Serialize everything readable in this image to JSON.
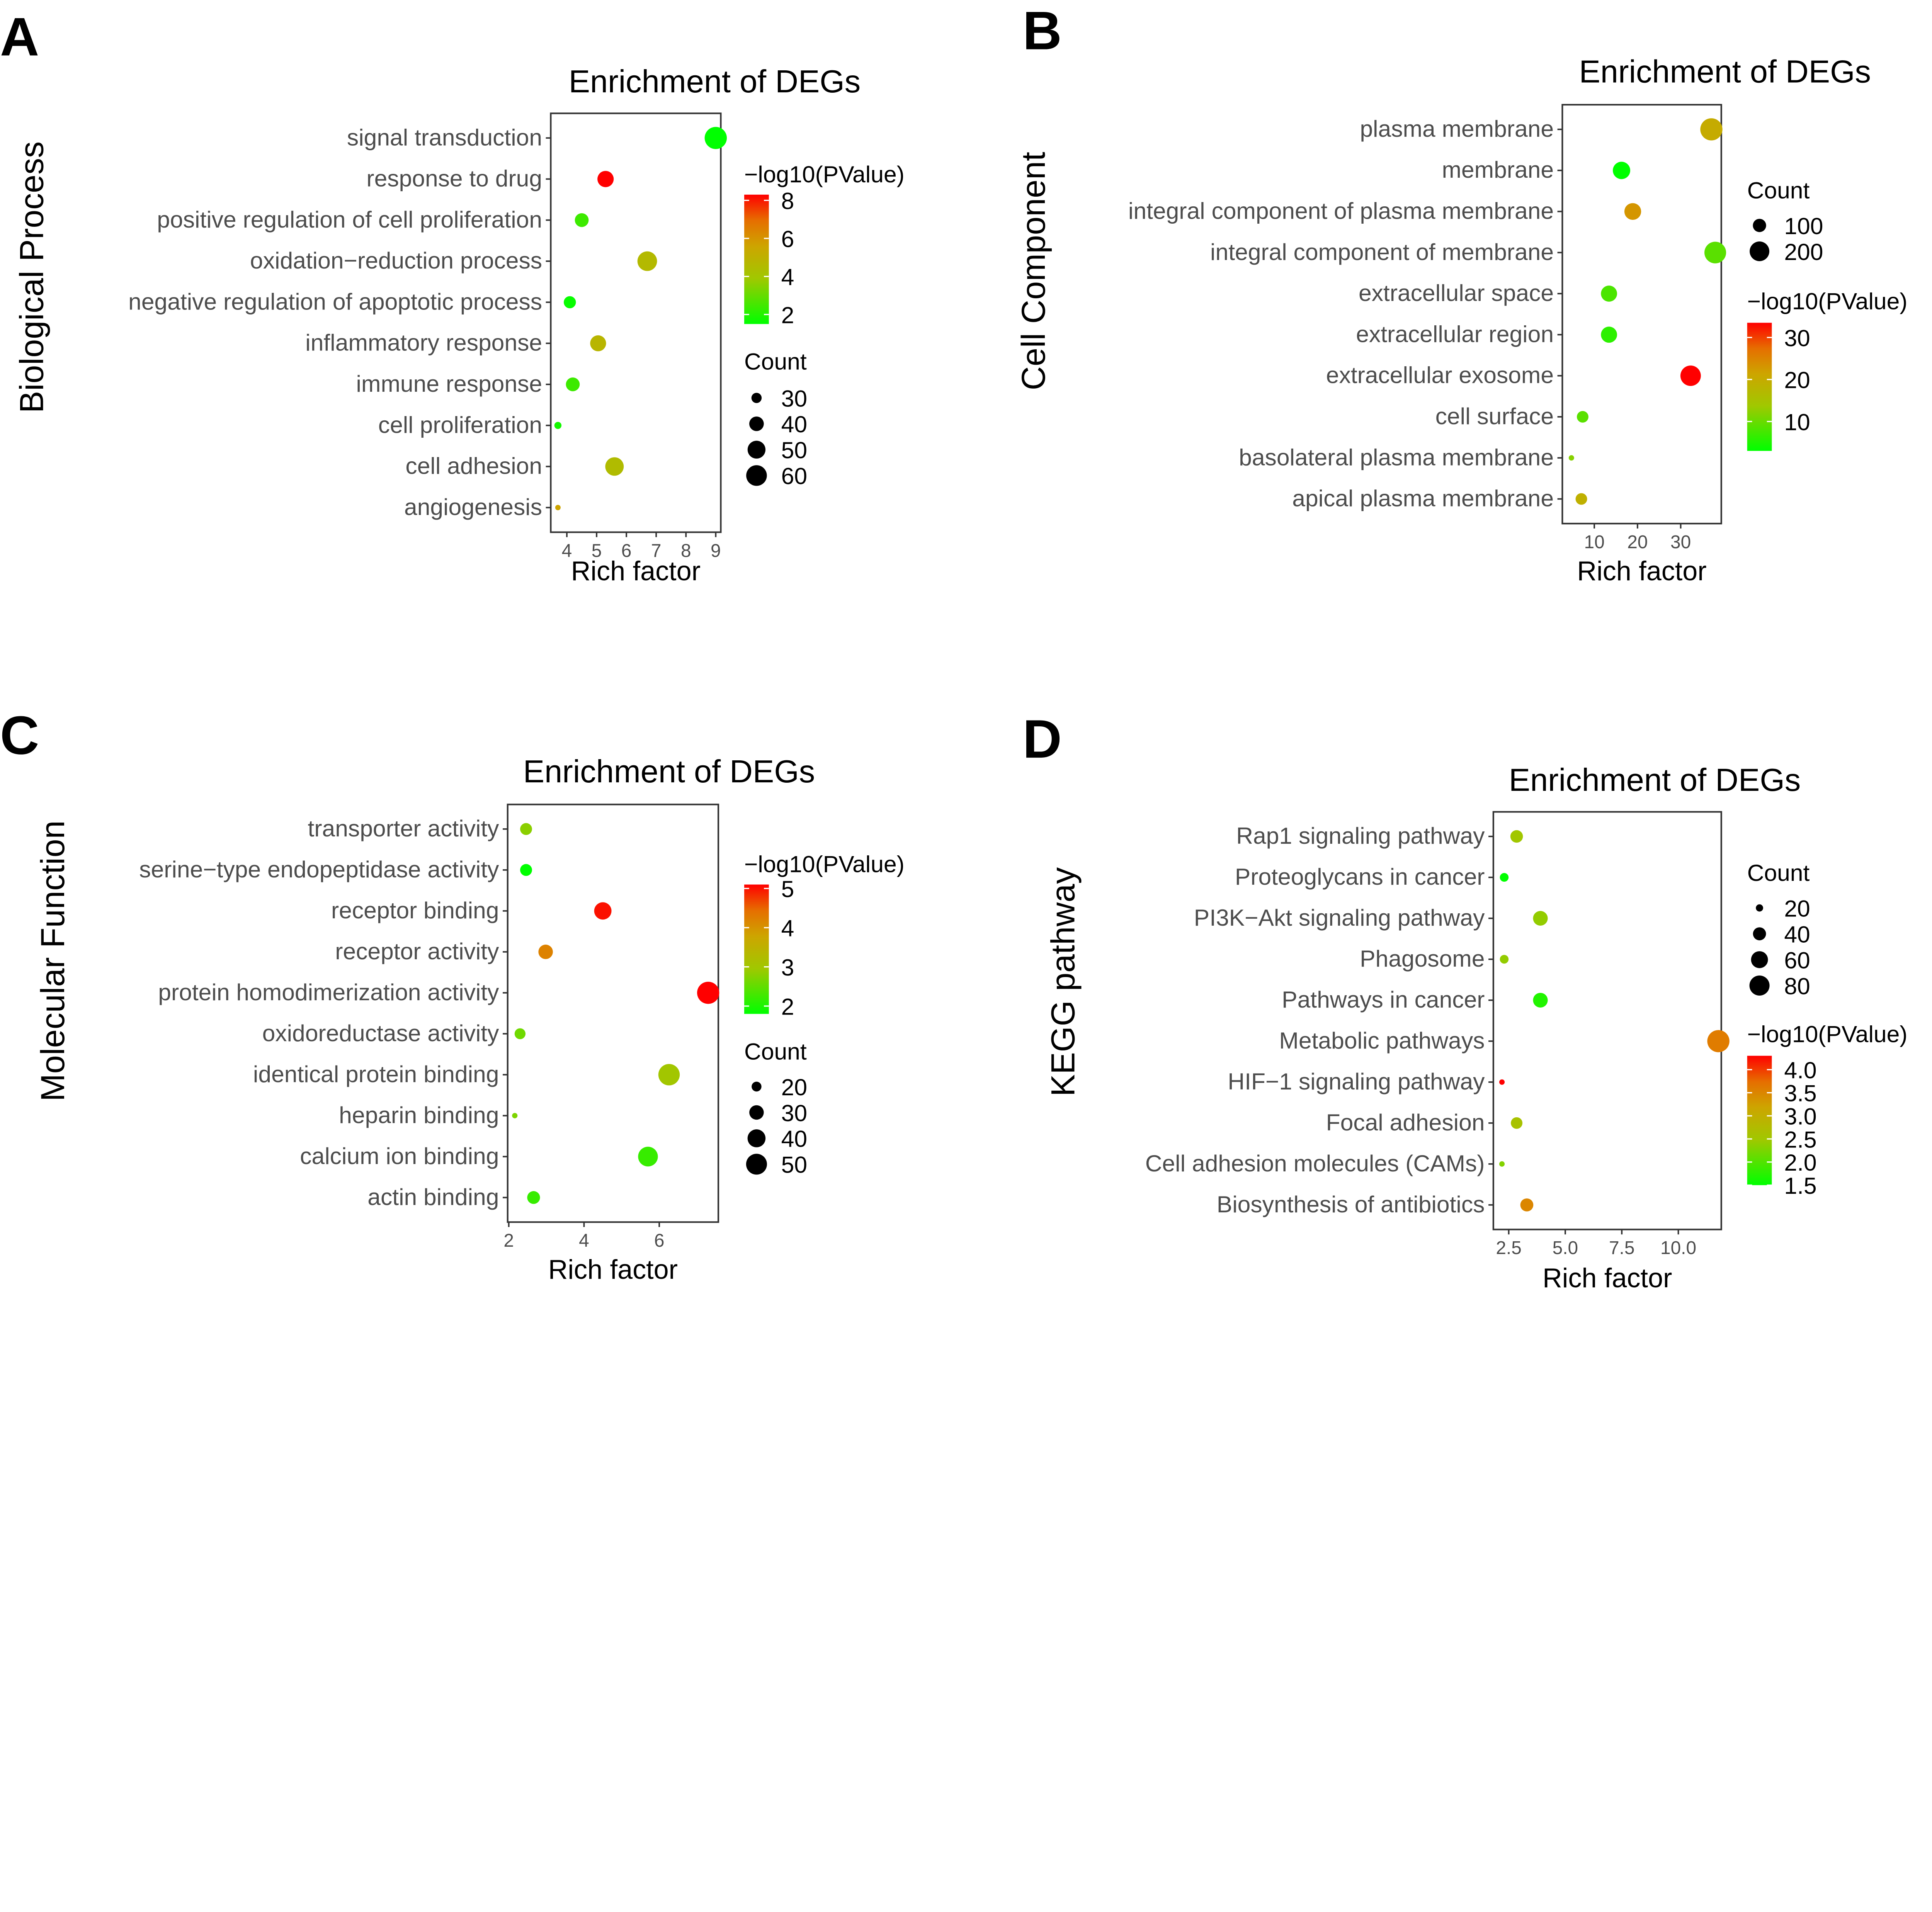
{
  "chart_data": [
    {
      "panel": "A",
      "type": "scatter",
      "title": "Enrichment of DEGs",
      "xlabel": "Rich factor",
      "ylabel": "Biological Process",
      "xlim": [
        3.46,
        9.17
      ],
      "xticks": [
        4,
        5,
        6,
        7,
        8,
        9
      ],
      "color_legend": {
        "title": "−log10(PValue)",
        "ticks": [
          2,
          4,
          6,
          8
        ],
        "low_color": "#00ff00",
        "high_color": "#ff0000"
      },
      "size_legend": {
        "title": "Count",
        "values": [
          30,
          40,
          50,
          60
        ]
      },
      "categories": [
        "signal transduction",
        "response to drug",
        "positive regulation of cell proliferation",
        "oxidation−reduction process",
        "negative regulation of apoptotic process",
        "inflammatory response",
        "immune response",
        "cell proliferation",
        "cell adhesion",
        "angiogenesis"
      ],
      "rich_factor": [
        9.0,
        5.3,
        4.5,
        6.7,
        4.1,
        5.05,
        4.2,
        3.7,
        5.6,
        3.7
      ],
      "count": [
        66,
        45,
        38,
        56,
        34,
        44,
        38,
        25,
        52,
        23
      ],
      "neglog10p": [
        1.5,
        8.3,
        2.4,
        4.6,
        1.6,
        4.8,
        2.4,
        1.8,
        4.5,
        5.6
      ]
    },
    {
      "panel": "B",
      "type": "scatter",
      "title": "Enrichment of DEGs",
      "xlabel": "Rich factor",
      "ylabel": "Cell Component",
      "xlim": [
        2.6,
        39.4
      ],
      "xticks": [
        10,
        20,
        30
      ],
      "color_legend": {
        "title": "−log10(PValue)",
        "ticks": [
          10,
          20,
          30
        ],
        "low_color": "#00ff00",
        "high_color": "#ff0000"
      },
      "size_legend": {
        "title": "Count",
        "values": [
          100,
          200
        ]
      },
      "categories": [
        "plasma membrane",
        "membrane",
        "integral component of plasma membrane",
        "integral component of membrane",
        "extracellular space",
        "extracellular region",
        "extracellular exosome",
        "cell surface",
        "basolateral plasma membrane",
        "apical plasma membrane"
      ],
      "rich_factor": [
        37.1,
        16.3,
        18.9,
        38.0,
        13.4,
        13.4,
        32.3,
        7.3,
        4.7,
        7.0
      ],
      "count": [
        250,
        160,
        150,
        240,
        140,
        140,
        215,
        80,
        30,
        80
      ],
      "neglog10p": [
        20,
        3,
        23,
        9,
        8,
        6,
        33.5,
        9,
        12,
        19
      ]
    },
    {
      "panel": "C",
      "type": "scatter",
      "title": "Enrichment of DEGs",
      "xlabel": "Rich factor",
      "ylabel": "Molecular Function",
      "xlim": [
        1.97,
        7.57
      ],
      "xticks": [
        2,
        4,
        6
      ],
      "color_legend": {
        "title": "−log10(PValue)",
        "ticks": [
          2,
          3,
          4,
          5
        ],
        "low_color": "#00ff00",
        "high_color": "#ff0000"
      },
      "size_legend": {
        "title": "Count",
        "values": [
          20,
          30,
          40,
          50
        ]
      },
      "categories": [
        "transporter activity",
        "serine−type endopeptidase activity",
        "receptor binding",
        "receptor activity",
        "protein homodimerization activity",
        "oxidoreductase activity",
        "identical protein binding",
        "heparin binding",
        "calcium ion binding",
        "actin binding"
      ],
      "rich_factor": [
        2.46,
        2.46,
        4.5,
        2.98,
        7.3,
        2.3,
        6.26,
        2.16,
        5.7,
        2.66
      ],
      "count": [
        24,
        24,
        38,
        30,
        55,
        22,
        52,
        14,
        46,
        26
      ],
      "neglog10p": [
        2.8,
        1.8,
        5.0,
        4.2,
        5.1,
        2.6,
        3.0,
        2.7,
        2.2,
        2.2
      ]
    },
    {
      "panel": "D",
      "type": "scatter",
      "title": "Enrichment of DEGs",
      "xlabel": "Rich factor",
      "ylabel": "KEGG pathway",
      "xlim": [
        1.82,
        11.9
      ],
      "xticks": [
        2.5,
        5.0,
        7.5,
        10.0
      ],
      "xtick_labels": [
        "2.5",
        "5.0",
        "7.5",
        "10.0"
      ],
      "color_legend": {
        "title": "−log10(PValue)",
        "ticks": [
          1.5,
          2.0,
          2.5,
          3.0,
          3.5,
          4.0
        ],
        "tick_labels": [
          "1.5",
          "2.0",
          "2.5",
          "3.0",
          "3.5",
          "4.0"
        ],
        "low_color": "#00ff00",
        "high_color": "#ff0000"
      },
      "size_legend": {
        "title": "Count",
        "values": [
          20,
          40,
          60,
          80
        ]
      },
      "categories": [
        "Rap1 signaling pathway",
        "Proteoglycans in cancer",
        "PI3K−Akt signaling pathway",
        "Phagosome",
        "Pathways in cancer",
        "Metabolic pathways",
        "HIF−1 signaling pathway",
        "Focal adhesion",
        "Cell adhesion molecules (CAMs)",
        "Biosynthesis of antibiotics"
      ],
      "rich_factor": [
        2.85,
        2.3,
        3.9,
        2.3,
        3.9,
        11.77,
        2.2,
        2.85,
        2.2,
        3.3
      ],
      "count": [
        38,
        24,
        48,
        24,
        48,
        95,
        16,
        34,
        16,
        40
      ],
      "neglog10p": [
        2.5,
        1.5,
        2.4,
        2.4,
        1.7,
        3.6,
        4.3,
        2.6,
        2.3,
        3.5
      ]
    }
  ]
}
